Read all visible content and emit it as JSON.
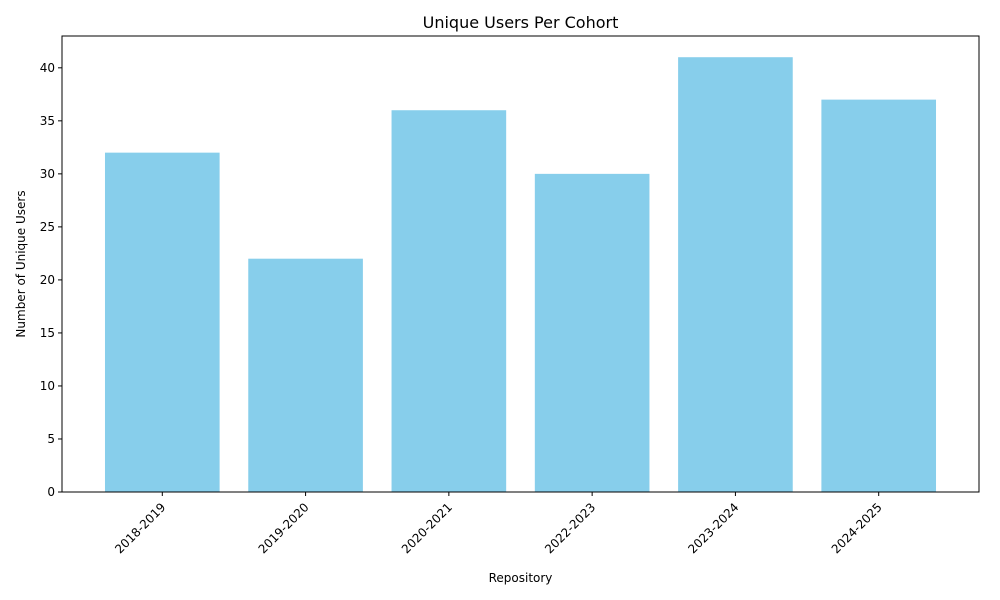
{
  "colors": {
    "bar": "#87ceeb",
    "axis": "#000000",
    "background": "#ffffff"
  },
  "chart_data": {
    "type": "bar",
    "title": "Unique Users Per Cohort",
    "xlabel": "Repository",
    "ylabel": "Number of Unique Users",
    "categories": [
      "2018-2019",
      "2019-2020",
      "2020-2021",
      "2022-2023",
      "2023-2024",
      "2024-2025"
    ],
    "values": [
      32,
      22,
      36,
      30,
      41,
      37
    ],
    "ylim": [
      0,
      43
    ],
    "yticks": [
      0,
      5,
      10,
      15,
      20,
      25,
      30,
      35,
      40
    ],
    "grid": false,
    "legend": "none",
    "xtick_rotation_deg": 45
  }
}
